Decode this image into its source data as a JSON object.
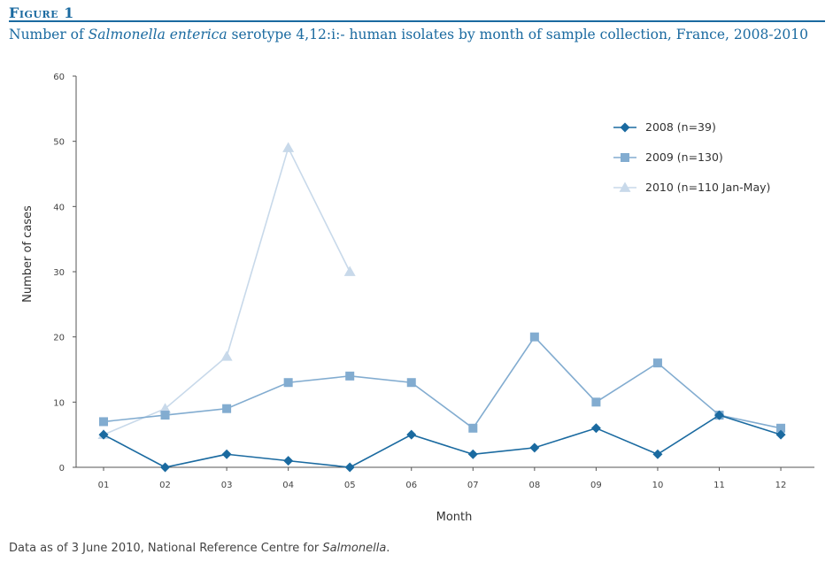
{
  "figure": {
    "label": "Figure 1",
    "title_prefix": "Number of ",
    "title_italic": "Salmonella enterica",
    "title_suffix": " serotype 4,12:i:- human isolates by month of sample collection, France, 2008-2010"
  },
  "footer": {
    "prefix": "Data as of 3 June 2010, National Reference Centre for ",
    "italic": "Salmonella",
    "suffix": "."
  },
  "colors": {
    "accent": "#1a6aa0",
    "series_2008": "#1a6aa0",
    "series_2009": "#82acd0",
    "series_2010": "#c8d9ea"
  },
  "chart_data": {
    "type": "line",
    "title": "Number of Salmonella enterica serotype 4,12:i:- human isolates by month of sample collection, France, 2008-2010",
    "xlabel": "Month",
    "ylabel": "Number of cases",
    "categories": [
      "01",
      "02",
      "03",
      "04",
      "05",
      "06",
      "07",
      "08",
      "09",
      "10",
      "11",
      "12"
    ],
    "ylim": [
      0,
      60
    ],
    "yticks": [
      0,
      10,
      20,
      30,
      40,
      50,
      60
    ],
    "grid": false,
    "legend_position": "top-right",
    "series": [
      {
        "name": "2008 (n=39)",
        "marker": "diamond",
        "color": "#1a6aa0",
        "values": [
          5,
          0,
          2,
          1,
          0,
          5,
          2,
          3,
          6,
          2,
          8,
          5
        ]
      },
      {
        "name": "2009 (n=130)",
        "marker": "square",
        "color": "#82acd0",
        "values": [
          7,
          8,
          9,
          13,
          14,
          13,
          6,
          20,
          10,
          16,
          8,
          6
        ]
      },
      {
        "name": "2010 (n=110 Jan-May)",
        "marker": "triangle",
        "color": "#c8d9ea",
        "values": [
          5,
          9,
          17,
          49,
          30,
          null,
          null,
          null,
          null,
          null,
          null,
          null
        ]
      }
    ]
  }
}
